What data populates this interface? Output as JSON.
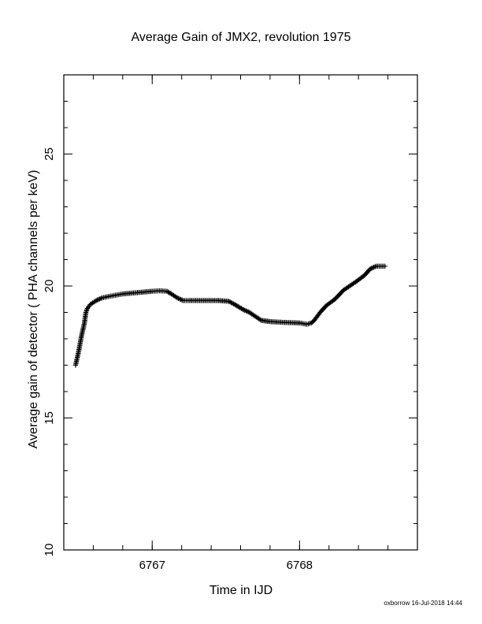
{
  "chart_data": {
    "type": "scatter",
    "marker": "+",
    "title": "Average Gain of JMX2, revolution 1975",
    "xlabel": "Time in IJD",
    "ylabel": "Average gain of detector ( PHA channels per keV)",
    "xlim": [
      6766.4,
      6768.8
    ],
    "ylim": [
      10,
      28
    ],
    "x_ticks": [
      6767,
      6768
    ],
    "x_tick_labels": [
      "6767",
      "6768"
    ],
    "x_minor_step": 0.2,
    "y_ticks": [
      10,
      15,
      20,
      25
    ],
    "y_tick_labels": [
      "10",
      "15",
      "20",
      "25"
    ],
    "y_minor_step": 1,
    "grid": false,
    "series": [
      {
        "color": "#000000",
        "x": [
          6766.48,
          6766.5,
          6766.52,
          6766.54,
          6766.55,
          6766.56,
          6766.58,
          6766.62,
          6766.66,
          6766.7,
          6766.75,
          6766.8,
          6766.9,
          6767.0,
          6767.05,
          6767.1,
          6767.13,
          6767.17,
          6767.21,
          6767.25,
          6767.35,
          6767.45,
          6767.52,
          6767.56,
          6767.62,
          6767.66,
          6767.7,
          6767.74,
          6767.8,
          6767.9,
          6768.0,
          6768.05,
          6768.08,
          6768.1,
          6768.14,
          6768.18,
          6768.24,
          6768.3,
          6768.34,
          6768.38,
          6768.44,
          6768.48,
          6768.52,
          6768.55,
          6768.58
        ],
        "y": [
          17.0,
          17.5,
          18.1,
          18.6,
          19.0,
          19.15,
          19.3,
          19.45,
          19.55,
          19.6,
          19.65,
          19.7,
          19.75,
          19.8,
          19.82,
          19.8,
          19.7,
          19.55,
          19.45,
          19.45,
          19.45,
          19.45,
          19.42,
          19.3,
          19.1,
          19.0,
          18.85,
          18.7,
          18.65,
          18.62,
          18.6,
          18.55,
          18.6,
          18.7,
          19.0,
          19.25,
          19.5,
          19.85,
          20.0,
          20.15,
          20.4,
          20.65,
          20.75,
          20.75,
          20.75
        ]
      }
    ]
  },
  "footer": {
    "credit": "oxborrow 16-Jul-2018 14:44"
  }
}
